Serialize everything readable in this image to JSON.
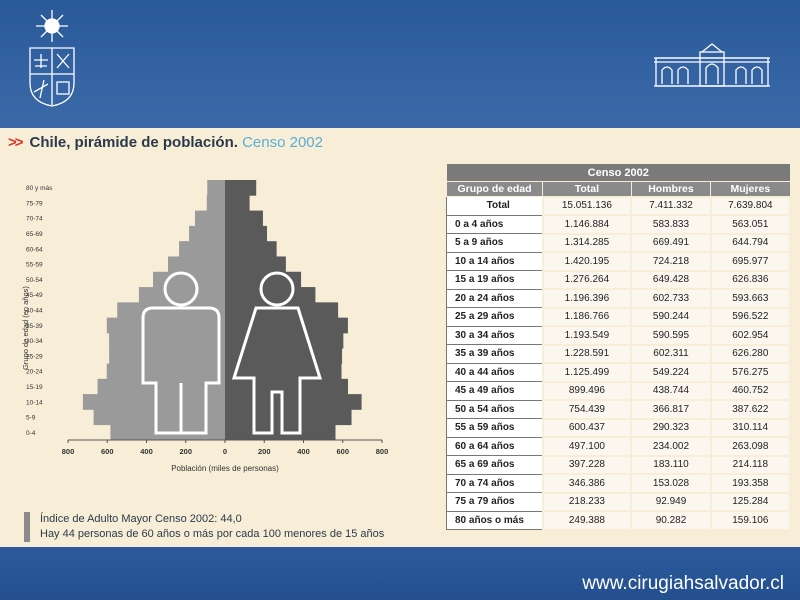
{
  "footer": {
    "url": "www.cirugiahsalvador.cl"
  },
  "slide": {
    "arrows": ">>",
    "title": "Chile, pirámide de población.",
    "subtitle": "Censo 2002",
    "footnote_line1": "Índice de Adulto Mayor Censo 2002: 44,0",
    "footnote_line2": "Hay 44 personas de 60 años o más por cada 100 menores de 15 años"
  },
  "colors": {
    "males": "#9a9a9a",
    "females": "#5a5a5a",
    "background": "#f8eed8",
    "accent": "#d23a2a"
  },
  "chart_data": {
    "type": "bar",
    "orientation": "horizontal",
    "xlabel": "Población (miles de personas)",
    "ylabel": "Grupo de edad (en años)",
    "xlim": [
      -800,
      800
    ],
    "xticks": [
      "800",
      "600",
      "400",
      "200",
      "0",
      "200",
      "400",
      "600",
      "800"
    ],
    "categories": [
      "0-4",
      "5-9",
      "10-14",
      "15-19",
      "20-24",
      "25-29",
      "30-34",
      "35-39",
      "40-44",
      "45-49",
      "50-54",
      "55-59",
      "60-64",
      "65-69",
      "70-74",
      "75-79",
      "80 y más"
    ],
    "series": [
      {
        "values": [
          583.8,
          669.5,
          724.2,
          649.4,
          602.7,
          590.2,
          590.6,
          602.3,
          549.2,
          438.7,
          366.8,
          290.3,
          234.0,
          183.1,
          153.0,
          92.9,
          90.3
        ]
      },
      {
        "values": [
          563.1,
          644.8,
          696.0,
          626.8,
          593.7,
          596.5,
          603.0,
          626.3,
          576.3,
          460.8,
          387.6,
          310.1,
          263.1,
          214.1,
          193.4,
          125.3,
          159.1
        ]
      }
    ]
  },
  "table": {
    "caption": "Censo 2002",
    "headers": [
      "Grupo de edad",
      "Total",
      "Hombres",
      "Mujeres"
    ],
    "rows": [
      [
        "Total",
        "15.051.136",
        "7.411.332",
        "7.639.804"
      ],
      [
        "0 a 4 años",
        "1.146.884",
        "583.833",
        "563.051"
      ],
      [
        "5 a 9 años",
        "1.314.285",
        "669.491",
        "644.794"
      ],
      [
        "10 a 14 años",
        "1.420.195",
        "724.218",
        "695.977"
      ],
      [
        "15 a 19 años",
        "1.276.264",
        "649.428",
        "626.836"
      ],
      [
        "20 a 24 años",
        "1.196.396",
        "602.733",
        "593.663"
      ],
      [
        "25 a 29 años",
        "1.186.766",
        "590.244",
        "596.522"
      ],
      [
        "30 a 34 años",
        "1.193.549",
        "590.595",
        "602.954"
      ],
      [
        "35 a 39 años",
        "1.228.591",
        "602.311",
        "626.280"
      ],
      [
        "40 a 44 años",
        "1.125.499",
        "549.224",
        "576.275"
      ],
      [
        "45 a 49 años",
        "899.496",
        "438.744",
        "460.752"
      ],
      [
        "50 a 54 años",
        "754.439",
        "366.817",
        "387.622"
      ],
      [
        "55 a 59 años",
        "600.437",
        "290.323",
        "310.114"
      ],
      [
        "60 a 64 años",
        "497.100",
        "234.002",
        "263.098"
      ],
      [
        "65 a 69 años",
        "397.228",
        "183.110",
        "214.118"
      ],
      [
        "70 a 74 años",
        "346.386",
        "153.028",
        "193.358"
      ],
      [
        "75 a 79 años",
        "218.233",
        "92.949",
        "125.284"
      ],
      [
        "80 años o más",
        "249.388",
        "90.282",
        "159.106"
      ]
    ]
  }
}
